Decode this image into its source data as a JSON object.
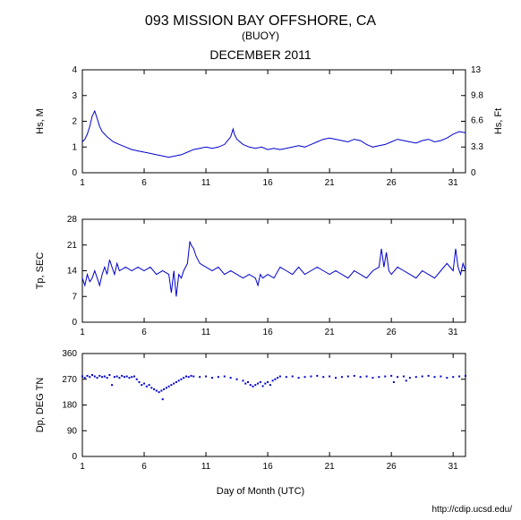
{
  "title": "093 MISSION BAY OFFSHORE, CA",
  "subtitle": "(BUOY)",
  "period": "DECEMBER 2011",
  "xlabel": "Day of Month (UTC)",
  "credit": "http://cdip.ucsd.edu/",
  "background_color": "#ffffff",
  "axis_color": "#000000",
  "line_color": "#0000cc",
  "scatter_color": "#0000cc",
  "title_fontsize": 16,
  "subtitle_fontsize": 12,
  "period_fontsize": 14,
  "label_fontsize": 11,
  "tick_fontsize": 10,
  "credit_fontsize": 10,
  "xlim": [
    1,
    32
  ],
  "xticks": [
    1,
    6,
    11,
    16,
    21,
    26,
    31
  ],
  "panels": [
    {
      "type": "line",
      "ylabel_left": "Hs, M",
      "ylabel_right": "Hs, Ft",
      "ylim_left": [
        0,
        4
      ],
      "yticks_left": [
        0,
        1,
        2,
        3,
        4
      ],
      "ylim_right": [
        0,
        13
      ],
      "yticks_right": [
        0,
        3.3,
        6.6,
        9.8,
        13
      ],
      "data": [
        [
          1.0,
          1.2
        ],
        [
          1.2,
          1.3
        ],
        [
          1.4,
          1.5
        ],
        [
          1.6,
          1.8
        ],
        [
          1.8,
          2.2
        ],
        [
          2.0,
          2.4
        ],
        [
          2.2,
          2.1
        ],
        [
          2.4,
          1.8
        ],
        [
          2.6,
          1.6
        ],
        [
          2.8,
          1.5
        ],
        [
          3.0,
          1.4
        ],
        [
          3.5,
          1.2
        ],
        [
          4.0,
          1.1
        ],
        [
          4.5,
          1.0
        ],
        [
          5.0,
          0.9
        ],
        [
          5.5,
          0.85
        ],
        [
          6.0,
          0.8
        ],
        [
          6.5,
          0.75
        ],
        [
          7.0,
          0.7
        ],
        [
          7.5,
          0.65
        ],
        [
          8.0,
          0.6
        ],
        [
          8.5,
          0.65
        ],
        [
          9.0,
          0.7
        ],
        [
          9.5,
          0.8
        ],
        [
          10.0,
          0.9
        ],
        [
          10.5,
          0.95
        ],
        [
          11.0,
          1.0
        ],
        [
          11.5,
          0.95
        ],
        [
          12.0,
          1.0
        ],
        [
          12.5,
          1.1
        ],
        [
          13.0,
          1.4
        ],
        [
          13.2,
          1.7
        ],
        [
          13.3,
          1.5
        ],
        [
          13.5,
          1.3
        ],
        [
          14.0,
          1.1
        ],
        [
          14.5,
          1.0
        ],
        [
          15.0,
          0.95
        ],
        [
          15.5,
          1.0
        ],
        [
          16.0,
          0.9
        ],
        [
          16.5,
          0.95
        ],
        [
          17.0,
          0.9
        ],
        [
          17.5,
          0.95
        ],
        [
          18.0,
          1.0
        ],
        [
          18.5,
          1.05
        ],
        [
          19.0,
          1.0
        ],
        [
          19.5,
          1.1
        ],
        [
          20.0,
          1.2
        ],
        [
          20.5,
          1.3
        ],
        [
          21.0,
          1.35
        ],
        [
          21.5,
          1.3
        ],
        [
          22.0,
          1.25
        ],
        [
          22.5,
          1.2
        ],
        [
          23.0,
          1.3
        ],
        [
          23.5,
          1.25
        ],
        [
          24.0,
          1.1
        ],
        [
          24.5,
          1.0
        ],
        [
          25.0,
          1.05
        ],
        [
          25.5,
          1.1
        ],
        [
          26.0,
          1.2
        ],
        [
          26.5,
          1.3
        ],
        [
          27.0,
          1.25
        ],
        [
          27.5,
          1.2
        ],
        [
          28.0,
          1.15
        ],
        [
          28.5,
          1.25
        ],
        [
          29.0,
          1.3
        ],
        [
          29.5,
          1.2
        ],
        [
          30.0,
          1.25
        ],
        [
          30.5,
          1.35
        ],
        [
          31.0,
          1.5
        ],
        [
          31.5,
          1.6
        ],
        [
          32.0,
          1.55
        ]
      ]
    },
    {
      "type": "line",
      "ylabel_left": "Tp, SEC",
      "ylim_left": [
        0,
        28
      ],
      "yticks_left": [
        0,
        7,
        14,
        21,
        28
      ],
      "data": [
        [
          1.0,
          12
        ],
        [
          1.2,
          10
        ],
        [
          1.4,
          13
        ],
        [
          1.6,
          11
        ],
        [
          1.8,
          12
        ],
        [
          2.0,
          14
        ],
        [
          2.2,
          12
        ],
        [
          2.4,
          10
        ],
        [
          2.6,
          13
        ],
        [
          2.8,
          15
        ],
        [
          3.0,
          13
        ],
        [
          3.2,
          17
        ],
        [
          3.4,
          15
        ],
        [
          3.6,
          13
        ],
        [
          3.8,
          16
        ],
        [
          4.0,
          14
        ],
        [
          4.5,
          15
        ],
        [
          5.0,
          14
        ],
        [
          5.5,
          15
        ],
        [
          6.0,
          14
        ],
        [
          6.5,
          15
        ],
        [
          7.0,
          13
        ],
        [
          7.5,
          14
        ],
        [
          8.0,
          13
        ],
        [
          8.2,
          8
        ],
        [
          8.4,
          14
        ],
        [
          8.6,
          7
        ],
        [
          8.8,
          13
        ],
        [
          9.0,
          12
        ],
        [
          9.2,
          14
        ],
        [
          9.5,
          16
        ],
        [
          9.7,
          22
        ],
        [
          9.8,
          21
        ],
        [
          10.0,
          20
        ],
        [
          10.2,
          18
        ],
        [
          10.5,
          16
        ],
        [
          11.0,
          15
        ],
        [
          11.5,
          14
        ],
        [
          12.0,
          15
        ],
        [
          12.5,
          13
        ],
        [
          13.0,
          14
        ],
        [
          13.5,
          13
        ],
        [
          14.0,
          12
        ],
        [
          14.5,
          13
        ],
        [
          15.0,
          12
        ],
        [
          15.2,
          10
        ],
        [
          15.4,
          13
        ],
        [
          15.6,
          12
        ],
        [
          16.0,
          13
        ],
        [
          16.5,
          12
        ],
        [
          17.0,
          15
        ],
        [
          17.5,
          14
        ],
        [
          18.0,
          13
        ],
        [
          18.5,
          15
        ],
        [
          19.0,
          13
        ],
        [
          19.5,
          14
        ],
        [
          20.0,
          15
        ],
        [
          20.5,
          14
        ],
        [
          21.0,
          13
        ],
        [
          21.5,
          14
        ],
        [
          22.0,
          13
        ],
        [
          22.5,
          12
        ],
        [
          23.0,
          14
        ],
        [
          23.5,
          13
        ],
        [
          24.0,
          12
        ],
        [
          24.5,
          14
        ],
        [
          25.0,
          15
        ],
        [
          25.2,
          20
        ],
        [
          25.4,
          15
        ],
        [
          25.6,
          19
        ],
        [
          25.8,
          14
        ],
        [
          26.0,
          13
        ],
        [
          26.5,
          15
        ],
        [
          27.0,
          14
        ],
        [
          27.5,
          13
        ],
        [
          28.0,
          12
        ],
        [
          28.5,
          14
        ],
        [
          29.0,
          13
        ],
        [
          29.5,
          12
        ],
        [
          30.0,
          14
        ],
        [
          30.5,
          16
        ],
        [
          31.0,
          14
        ],
        [
          31.2,
          20
        ],
        [
          31.4,
          15
        ],
        [
          31.6,
          13
        ],
        [
          31.8,
          16
        ],
        [
          32.0,
          14
        ]
      ]
    },
    {
      "type": "scatter",
      "ylabel_left": "Dp, DEG TN",
      "ylim_left": [
        0,
        360
      ],
      "yticks_left": [
        0,
        90,
        180,
        270,
        360
      ],
      "data": [
        [
          1.0,
          280
        ],
        [
          1.2,
          275
        ],
        [
          1.4,
          282
        ],
        [
          1.6,
          278
        ],
        [
          1.8,
          285
        ],
        [
          2.0,
          280
        ],
        [
          2.2,
          275
        ],
        [
          2.4,
          282
        ],
        [
          2.6,
          278
        ],
        [
          2.8,
          280
        ],
        [
          3.0,
          275
        ],
        [
          3.2,
          285
        ],
        [
          3.4,
          250
        ],
        [
          3.6,
          278
        ],
        [
          3.8,
          280
        ],
        [
          4.0,
          275
        ],
        [
          4.2,
          282
        ],
        [
          4.4,
          278
        ],
        [
          4.6,
          280
        ],
        [
          4.8,
          275
        ],
        [
          5.0,
          278
        ],
        [
          5.2,
          280
        ],
        [
          5.4,
          270
        ],
        [
          5.6,
          260
        ],
        [
          5.8,
          250
        ],
        [
          6.0,
          255
        ],
        [
          6.2,
          245
        ],
        [
          6.4,
          250
        ],
        [
          6.6,
          240
        ],
        [
          6.8,
          235
        ],
        [
          7.0,
          230
        ],
        [
          7.2,
          225
        ],
        [
          7.4,
          230
        ],
        [
          7.5,
          200
        ],
        [
          7.6,
          235
        ],
        [
          7.8,
          240
        ],
        [
          8.0,
          245
        ],
        [
          8.2,
          250
        ],
        [
          8.4,
          255
        ],
        [
          8.6,
          260
        ],
        [
          8.8,
          265
        ],
        [
          9.0,
          270
        ],
        [
          9.2,
          275
        ],
        [
          9.4,
          280
        ],
        [
          9.6,
          278
        ],
        [
          9.8,
          282
        ],
        [
          10.0,
          280
        ],
        [
          10.5,
          278
        ],
        [
          11.0,
          280
        ],
        [
          11.5,
          275
        ],
        [
          12.0,
          278
        ],
        [
          12.5,
          280
        ],
        [
          13.0,
          275
        ],
        [
          13.5,
          270
        ],
        [
          14.0,
          265
        ],
        [
          14.2,
          255
        ],
        [
          14.4,
          260
        ],
        [
          14.6,
          250
        ],
        [
          14.8,
          245
        ],
        [
          15.0,
          250
        ],
        [
          15.2,
          255
        ],
        [
          15.4,
          260
        ],
        [
          15.6,
          246
        ],
        [
          15.8,
          255
        ],
        [
          16.0,
          260
        ],
        [
          16.2,
          250
        ],
        [
          16.4,
          265
        ],
        [
          16.6,
          270
        ],
        [
          16.8,
          275
        ],
        [
          17.0,
          280
        ],
        [
          17.5,
          278
        ],
        [
          18.0,
          280
        ],
        [
          18.5,
          275
        ],
        [
          19.0,
          278
        ],
        [
          19.5,
          280
        ],
        [
          20.0,
          282
        ],
        [
          20.5,
          278
        ],
        [
          21.0,
          280
        ],
        [
          21.5,
          275
        ],
        [
          22.0,
          278
        ],
        [
          22.5,
          280
        ],
        [
          23.0,
          282
        ],
        [
          23.5,
          278
        ],
        [
          24.0,
          280
        ],
        [
          24.5,
          275
        ],
        [
          25.0,
          278
        ],
        [
          25.5,
          280
        ],
        [
          26.0,
          282
        ],
        [
          26.2,
          260
        ],
        [
          26.5,
          278
        ],
        [
          27.0,
          280
        ],
        [
          27.2,
          265
        ],
        [
          27.5,
          275
        ],
        [
          28.0,
          278
        ],
        [
          28.5,
          280
        ],
        [
          29.0,
          282
        ],
        [
          29.5,
          278
        ],
        [
          30.0,
          280
        ],
        [
          30.5,
          275
        ],
        [
          31.0,
          278
        ],
        [
          31.5,
          280
        ],
        [
          32.0,
          282
        ]
      ]
    }
  ]
}
